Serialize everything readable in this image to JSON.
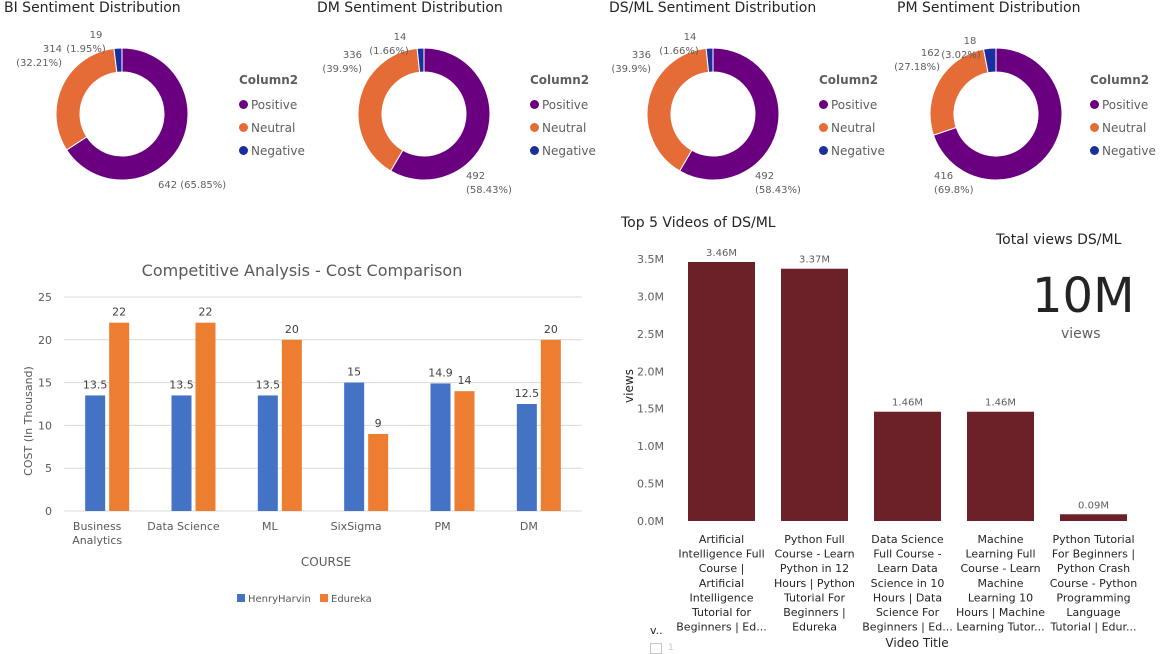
{
  "donuts": [
    {
      "title": "BI Sentiment Distribution",
      "legend_title": "Column2",
      "slices": [
        {
          "name": "Positive",
          "value": 642,
          "pct": "65.85%",
          "label": "642 (65.85%)",
          "color": "#6a0080"
        },
        {
          "name": "Neutral",
          "value": 314,
          "pct": "32.21%",
          "label_a": "314",
          "label_b": "(32.21%)",
          "color": "#e66c37"
        },
        {
          "name": "Negative",
          "value": 19,
          "pct": "1.95%",
          "label_a": "19",
          "label_b": "(1.95%)",
          "color": "#1a2ea0"
        }
      ]
    },
    {
      "title": "DM Sentiment Distribution",
      "legend_title": "Column2",
      "slices": [
        {
          "name": "Positive",
          "value": 492,
          "pct": "58.43%",
          "label_a": "492",
          "label_b": "(58.43%)",
          "color": "#6a0080"
        },
        {
          "name": "Neutral",
          "value": 336,
          "pct": "39.9%",
          "label_a": "336",
          "label_b": "(39.9%)",
          "color": "#e66c37"
        },
        {
          "name": "Negative",
          "value": 14,
          "pct": "1.66%",
          "label_a": "14",
          "label_b": "(1.66%)",
          "color": "#1a2ea0"
        }
      ]
    },
    {
      "title": "DS/ML Sentiment Distribution",
      "legend_title": "Column2",
      "slices": [
        {
          "name": "Positive",
          "value": 492,
          "pct": "58.43%",
          "label_a": "492",
          "label_b": "(58.43%)",
          "color": "#6a0080"
        },
        {
          "name": "Neutral",
          "value": 336,
          "pct": "39.9%",
          "label_a": "336",
          "label_b": "(39.9%)",
          "color": "#e66c37"
        },
        {
          "name": "Negative",
          "value": 14,
          "pct": "1.66%",
          "label_a": "14",
          "label_b": "(1.66%)",
          "color": "#1a2ea0"
        }
      ]
    },
    {
      "title": "PM Sentiment Distribution",
      "legend_title": "Column2",
      "slices": [
        {
          "name": "Positive",
          "value": 416,
          "pct": "69.8%",
          "label_a": "416",
          "label_b": "(69.8%)",
          "color": "#6a0080"
        },
        {
          "name": "Neutral",
          "value": 162,
          "pct": "27.18%",
          "label_a": "162",
          "label_b": "(27.18%)",
          "color": "#e66c37"
        },
        {
          "name": "Negative",
          "value": 18,
          "pct": "3.02%",
          "label_a": "18",
          "label_b": "(3.02%)",
          "color": "#1a2ea0"
        }
      ]
    }
  ],
  "cost": {
    "title": "Competitive Analysis - Cost Comparison",
    "xlabel": "COURSE",
    "ylabel": "COST (In Thousand)",
    "ylim": [
      0,
      25
    ],
    "yticks": [
      "0",
      "5",
      "10",
      "15",
      "20",
      "25"
    ],
    "categories": [
      [
        "Business",
        "Analytics"
      ],
      [
        "Data Science"
      ],
      [
        "ML"
      ],
      [
        "SixSigma"
      ],
      [
        "PM"
      ],
      [
        "DM"
      ]
    ],
    "series": [
      {
        "name": "HenryHarvin",
        "color": "#4472c4",
        "values": [
          13.5,
          13.5,
          13.5,
          15,
          14.9,
          12.5
        ],
        "labels": [
          "13.5",
          "13.5",
          "13.5",
          "15",
          "14.9",
          "12.5"
        ]
      },
      {
        "name": "Edureka",
        "color": "#ed7d31",
        "values": [
          22,
          22,
          20,
          9,
          14,
          20
        ],
        "labels": [
          "22",
          "22",
          "20",
          "9",
          "14",
          "20"
        ]
      }
    ]
  },
  "videos": {
    "title": "Top 5 Videos of DS/ML",
    "xlabel": "Video Title",
    "ylabel": "views",
    "ylim": [
      0,
      3.5
    ],
    "yticks": [
      "0.0M",
      "0.5M",
      "1.0M",
      "1.5M",
      "2.0M",
      "2.5M",
      "3.0M",
      "3.5M"
    ],
    "bar_color": "#6b2127",
    "values": [
      3.46,
      3.37,
      1.46,
      1.46,
      0.09
    ],
    "labels": [
      "3.46M",
      "3.37M",
      "1.46M",
      "1.46M",
      "0.09M"
    ],
    "categories": [
      [
        "Artificial",
        "Intelligence Full",
        "Course |",
        "Artificial",
        "Intelligence",
        "Tutorial for",
        "Beginners | Ed..."
      ],
      [
        "Python Full",
        "Course - Learn",
        "Python in 12",
        "Hours | Python",
        "Tutorial For",
        "Beginners |",
        "Edureka"
      ],
      [
        "Data Science",
        "Full Course -",
        "Learn Data",
        "Science in 10",
        "Hours | Data",
        "Science For",
        "Beginners | Ed..."
      ],
      [
        "Machine",
        "Learning Full",
        "Course - Learn",
        "Machine",
        "Learning 10",
        "Hours | Machine",
        "Learning Tutor..."
      ],
      [
        "Python Tutorial",
        "For Beginners |",
        "Python Crash",
        "Course - Python",
        "Programming",
        "Language",
        "Tutorial | Edur..."
      ]
    ],
    "footer_label": "v..",
    "footer_mark": "1"
  },
  "kpi": {
    "title": "Total views DS/ML",
    "value": "10M",
    "unit": "views"
  }
}
